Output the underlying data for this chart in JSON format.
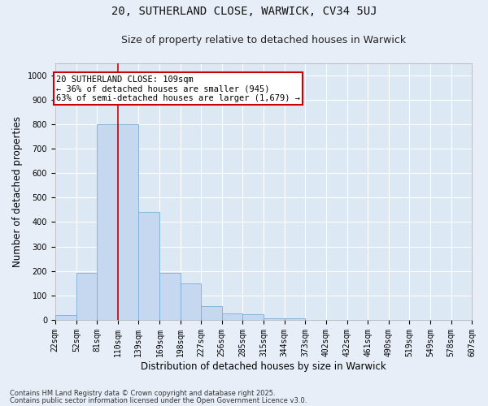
{
  "title_line1": "20, SUTHERLAND CLOSE, WARWICK, CV34 5UJ",
  "title_line2": "Size of property relative to detached houses in Warwick",
  "xlabel": "Distribution of detached houses by size in Warwick",
  "ylabel": "Number of detached properties",
  "bar_color": "#c5d8f0",
  "bar_edge_color": "#7aadd4",
  "background_color": "#dde8f5",
  "grid_color": "#ffffff",
  "vline_color": "#cc0000",
  "vline_x": 110,
  "annotation_text": "20 SUTHERLAND CLOSE: 109sqm\n← 36% of detached houses are smaller (945)\n63% of semi-detached houses are larger (1,679) →",
  "annotation_box_color": "#cc0000",
  "footnote1": "Contains HM Land Registry data © Crown copyright and database right 2025.",
  "footnote2": "Contains public sector information licensed under the Open Government Licence v3.0.",
  "bin_edges": [
    22,
    52,
    81,
    110,
    139,
    169,
    198,
    227,
    256,
    285,
    315,
    344,
    373,
    402,
    432,
    461,
    490,
    519,
    549,
    578,
    607
  ],
  "bin_counts": [
    20,
    192,
    800,
    800,
    440,
    192,
    148,
    55,
    25,
    22,
    8,
    8,
    0,
    0,
    0,
    0,
    0,
    0,
    0,
    0
  ],
  "ylim": [
    0,
    1050
  ],
  "yticks": [
    0,
    100,
    200,
    300,
    400,
    500,
    600,
    700,
    800,
    900,
    1000
  ],
  "title_fontsize": 10,
  "subtitle_fontsize": 9,
  "axis_label_fontsize": 8.5,
  "tick_fontsize": 7,
  "annotation_fontsize": 7.5,
  "footnote_fontsize": 6
}
